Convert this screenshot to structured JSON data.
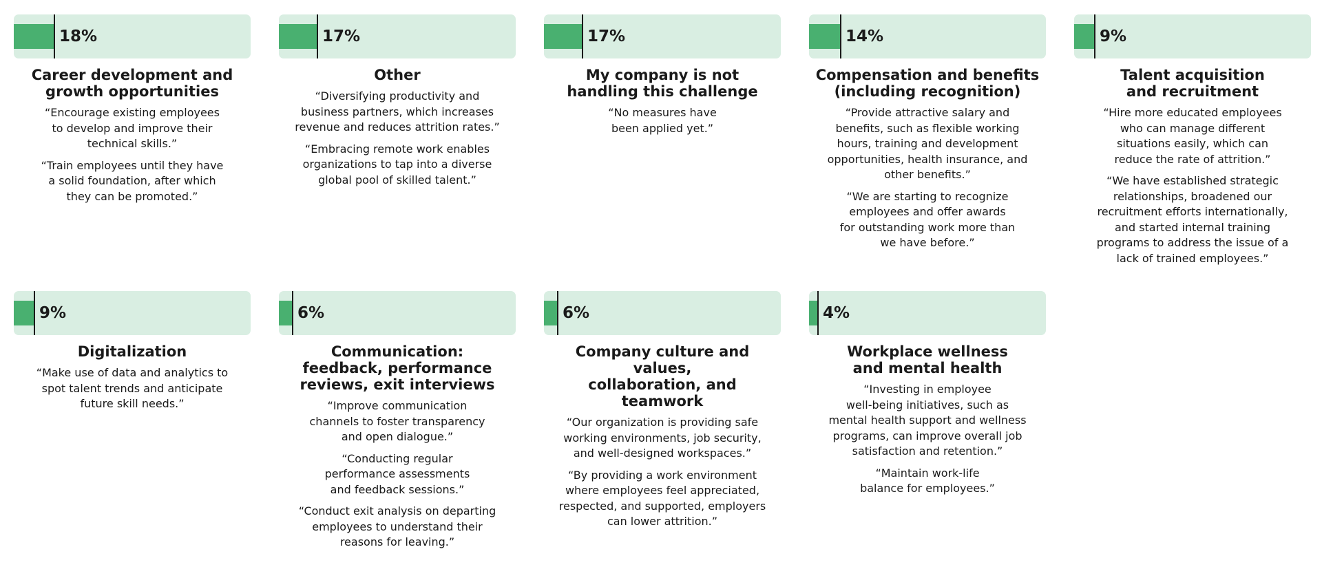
{
  "chart_data": {
    "type": "bar",
    "value_unit": "%",
    "xlim": [
      0,
      100
    ],
    "categories": [
      "Career development and growth opportunities",
      "Other",
      "My company is not handling this challenge",
      "Compensation and benefits (including recognition)",
      "Talent acquisition and recruitment",
      "Digitalization",
      "Communication: feedback, performance reviews, exit interviews",
      "Company culture and values, collaboration, and teamwork",
      "Workplace wellness and mental health"
    ],
    "values": [
      18,
      17,
      17,
      14,
      9,
      9,
      6,
      6,
      4
    ],
    "value_labels": [
      "18%",
      "17%",
      "17%",
      "14%",
      "9%",
      "9%",
      "6%",
      "6%",
      "4%"
    ],
    "bar_fill_color": "#49b070",
    "bar_track_color": "#d9eee2",
    "items": [
      {
        "value": 18,
        "value_label": "18%",
        "title_lines": [
          "Career development and",
          "growth opportunities"
        ],
        "quotes": [
          [
            "“Encourage existing employees",
            "to develop and improve their",
            "technical skills.”"
          ],
          [
            "“Train employees until they have",
            "a solid foundation, after which",
            "they can be promoted.”"
          ]
        ]
      },
      {
        "value": 17,
        "value_label": "17%",
        "title_lines": [
          "Other"
        ],
        "quotes": [
          [
            "“Diversifying productivity and",
            "business partners, which increases",
            "revenue and reduces attrition rates.”"
          ],
          [
            "“Embracing remote work enables",
            "organizations to tap into a diverse",
            "global pool of skilled talent.”"
          ]
        ]
      },
      {
        "value": 17,
        "value_label": "17%",
        "title_lines": [
          "My company is not",
          "handling this challenge"
        ],
        "quotes": [
          [
            "“No measures have",
            "been applied yet.”"
          ]
        ]
      },
      {
        "value": 14,
        "value_label": "14%",
        "title_lines": [
          "Compensation and benefits",
          "(including recognition)"
        ],
        "quotes": [
          [
            "“Provide attractive salary and",
            "benefits, such as flexible working",
            "hours, training and development",
            "opportunities, health insurance, and",
            "other benefits.”"
          ],
          [
            "“We are starting to recognize",
            "employees and offer awards",
            "for outstanding work more than",
            "we have before.”"
          ]
        ]
      },
      {
        "value": 9,
        "value_label": "9%",
        "title_lines": [
          "Talent acquisition",
          "and recruitment"
        ],
        "quotes": [
          [
            "“Hire more educated employees",
            "who can manage different",
            "situations easily, which can",
            "reduce the rate of attrition.”"
          ],
          [
            "“We have established strategic",
            "relationships, broadened our",
            "recruitment efforts internationally,",
            "and started internal training",
            "programs to address the issue of a",
            "lack of trained employees.”"
          ]
        ]
      },
      {
        "value": 9,
        "value_label": "9%",
        "title_lines": [
          "Digitalization"
        ],
        "quotes": [
          [
            "“Make use of data and analytics to",
            "spot talent trends and anticipate",
            "future skill needs.”"
          ]
        ]
      },
      {
        "value": 6,
        "value_label": "6%",
        "title_lines": [
          "Communication:",
          "feedback, performance",
          "reviews, exit interviews"
        ],
        "quotes": [
          [
            "“Improve communication",
            "channels to foster transparency",
            "and open dialogue.”"
          ],
          [
            "“Conducting regular",
            "performance assessments",
            "and feedback sessions.”"
          ],
          [
            "“Conduct exit analysis on departing",
            "employees to understand their",
            "reasons for leaving.”"
          ]
        ]
      },
      {
        "value": 6,
        "value_label": "6%",
        "title_lines": [
          "Company culture and values,",
          "collaboration, and teamwork"
        ],
        "quotes": [
          [
            "“Our organization is providing safe",
            "working environments, job security,",
            "and well-designed workspaces.”"
          ],
          [
            "“By providing a work environment",
            "where employees feel appreciated,",
            "respected, and supported, employers",
            "can lower attrition.”"
          ]
        ]
      },
      {
        "value": 4,
        "value_label": "4%",
        "title_lines": [
          "Workplace wellness",
          "and mental health"
        ],
        "quotes": [
          [
            "“Investing in employee",
            "well-being initiatives, such as",
            "mental health support and wellness",
            "programs, can improve overall job",
            "satisfaction and retention.”"
          ],
          [
            "“Maintain work-life",
            "balance for employees.”"
          ]
        ]
      }
    ]
  }
}
